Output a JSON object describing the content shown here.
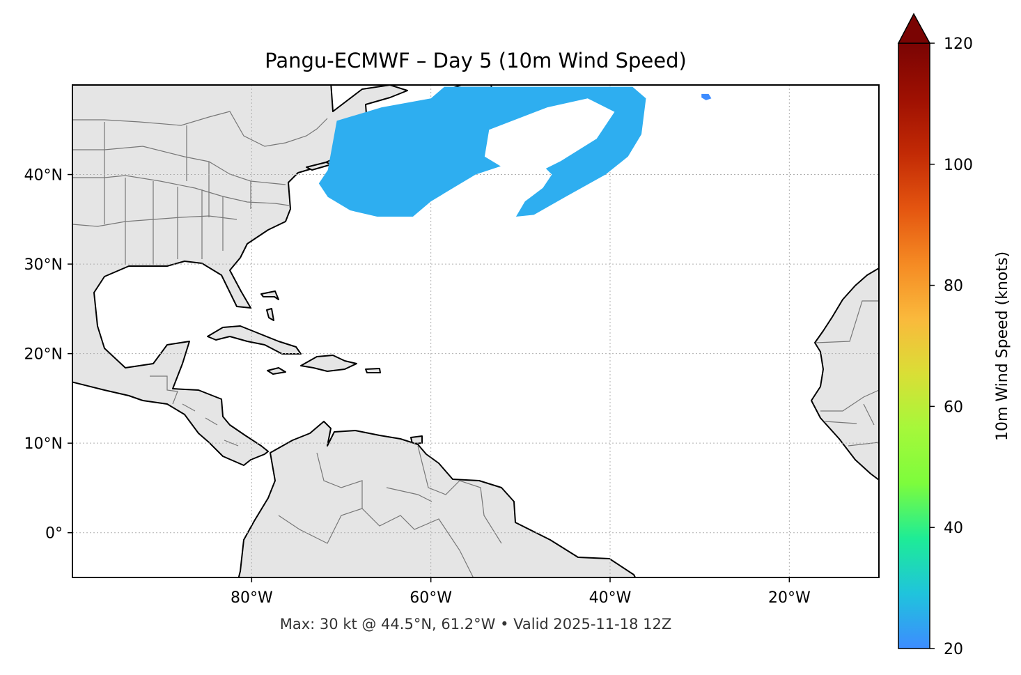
{
  "chart_data": {
    "type": "heatmap",
    "title": "Pangu-ECMWF – Day 5 (10m Wind Speed)",
    "footnote": "Max: 30 kt @ 44.5°N, 61.2°W • Valid 2025-11-18 12Z",
    "xlim": [
      -100,
      -10
    ],
    "ylim": [
      -5,
      50
    ],
    "x_tick_values": [
      -80,
      -60,
      -40,
      -20
    ],
    "x_tick_labels": [
      "80°W",
      "60°W",
      "40°W",
      "20°W"
    ],
    "y_tick_values": [
      0,
      10,
      20,
      30,
      40
    ],
    "y_tick_labels": [
      "0°",
      "10°N",
      "20°N",
      "30°N",
      "40°N"
    ],
    "grid": true,
    "colorbar": {
      "label": "10m Wind Speed (knots)",
      "min": 20,
      "max": 120,
      "extend": "max",
      "tick_values": [
        20,
        40,
        60,
        80,
        100,
        120
      ],
      "tick_labels": [
        "20",
        "40",
        "60",
        "80",
        "100",
        "120"
      ],
      "colors": [
        "#3d8cff",
        "#1fc4dc",
        "#1eec96",
        "#7dfc3c",
        "#a6f83a",
        "#dade36",
        "#fab93c",
        "#f58a23",
        "#e45510",
        "#c22a05",
        "#9e1002",
        "#7a0403"
      ],
      "extend_color": "#7a0403"
    },
    "wind_fields": [
      {
        "name": "wind-region-main",
        "color": "#2eaef0",
        "points": [
          [
            -70.5,
            46
          ],
          [
            -65.5,
            47.5
          ],
          [
            -60,
            48.5
          ],
          [
            -58.5,
            49.8
          ],
          [
            -50,
            49.8
          ],
          [
            -45,
            49.8
          ],
          [
            -40.5,
            49.8
          ],
          [
            -37.5,
            49.8
          ],
          [
            -36,
            48.5
          ],
          [
            -36.5,
            44.5
          ],
          [
            -38,
            42
          ],
          [
            -40.5,
            40
          ],
          [
            -45,
            37.5
          ],
          [
            -48.5,
            35.5
          ],
          [
            -50.5,
            35.3
          ],
          [
            -49.5,
            37
          ],
          [
            -47.5,
            38.5
          ],
          [
            -46.5,
            40
          ],
          [
            -48,
            41.5
          ],
          [
            -52,
            41
          ],
          [
            -55,
            40
          ],
          [
            -57.5,
            38.5
          ],
          [
            -60,
            37
          ],
          [
            -62,
            35.3
          ],
          [
            -66,
            35.3
          ],
          [
            -69,
            36
          ],
          [
            -71.5,
            37.5
          ],
          [
            -72.5,
            39
          ],
          [
            -71.5,
            40.5
          ]
        ]
      },
      {
        "name": "calm-region-inner",
        "color": "#ffffff",
        "points": [
          [
            -53.5,
            45
          ],
          [
            -47,
            47.5
          ],
          [
            -42.5,
            48.5
          ],
          [
            -39.5,
            47
          ],
          [
            -41.5,
            44
          ],
          [
            -45.5,
            41.5
          ],
          [
            -48.5,
            40
          ],
          [
            -51.5,
            40.5
          ],
          [
            -54,
            42
          ]
        ]
      },
      {
        "name": "wind-speck",
        "color": "#3d8cff",
        "points": [
          [
            -29.8,
            49
          ],
          [
            -29,
            49
          ],
          [
            -28.7,
            48.5
          ],
          [
            -29.3,
            48.3
          ],
          [
            -29.8,
            48.6
          ]
        ]
      }
    ]
  }
}
